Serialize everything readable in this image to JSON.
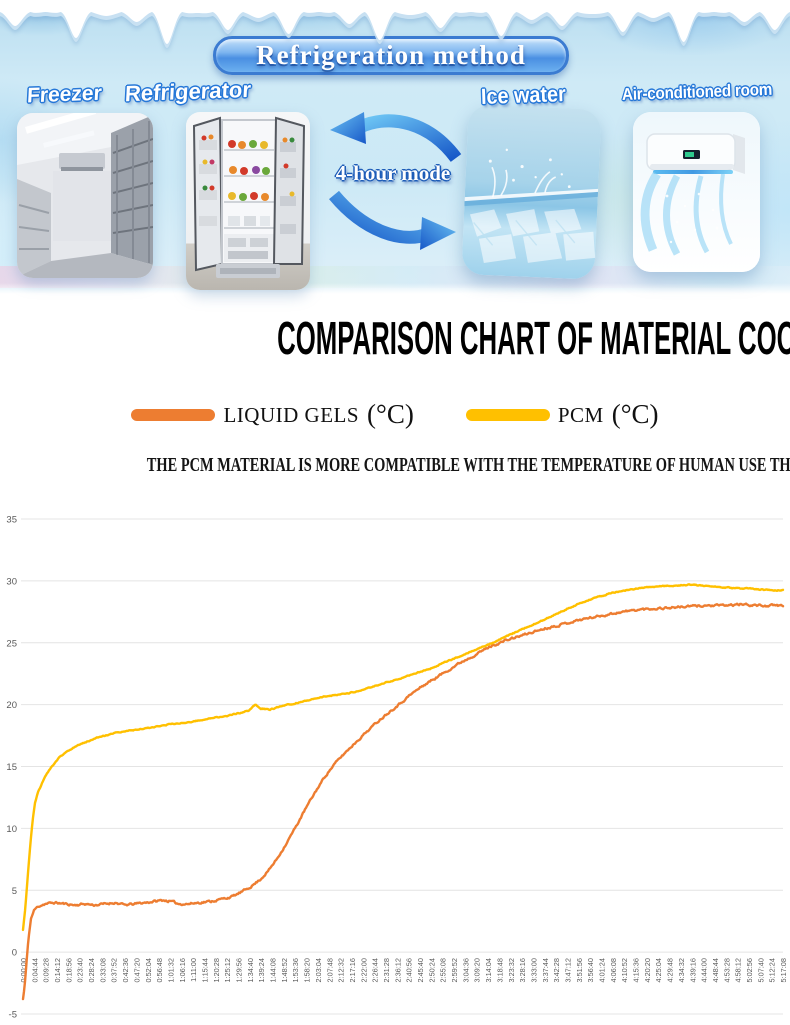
{
  "banner": {
    "title": "Refrigeration method",
    "caption": "4-hour mode",
    "items": [
      {
        "label": "Freezer"
      },
      {
        "label": "Refrigerator"
      },
      {
        "label": "Ice water"
      },
      {
        "label": "Air-conditioned room"
      }
    ]
  },
  "heading": {
    "title": "COMPARISON CHART OF MATERIAL COOLING EFFECTS"
  },
  "legend": [
    {
      "label": "LIQUID GELS",
      "unit": "(°C)",
      "color": "#ED7D31"
    },
    {
      "label": "PCM",
      "unit": "(°C)",
      "color": "#FFC000"
    }
  ],
  "subtitle": {
    "text": "THE PCM MATERIAL IS MORE COMPATIBLE WITH THE TEMPERATURE  OF HUMAN USE THAN LIQUID GEL"
  },
  "chart_data": {
    "type": "line",
    "title": "",
    "xlabel": "",
    "ylabel": "",
    "ylim": [
      -5,
      35
    ],
    "yticks": [
      35,
      30,
      25,
      20,
      15,
      10,
      5,
      0,
      -5
    ],
    "grid": "horizontal-only",
    "legend_position": "above-chart",
    "grid_color": "#e4e4e4",
    "tick_color": "#595959",
    "x_total_seconds": 19028,
    "x_tick_interval_seconds": 284,
    "x_tick_labels": [
      "0:00:00",
      "0:04:44",
      "0:09:28",
      "0:14:12",
      "0:18:56",
      "0:23:40",
      "0:28:24",
      "0:33:08",
      "0:37:52",
      "0:42:36",
      "0:47:20",
      "0:52:04",
      "0:56:48",
      "1:01:32",
      "1:06:16",
      "1:11:00",
      "1:15:44",
      "1:20:28",
      "1:25:12",
      "1:29:56",
      "1:34:40",
      "1:39:24",
      "1:44:08",
      "1:48:52",
      "1:53:36",
      "1:58:20",
      "2:03:04",
      "2:07:48",
      "2:12:32",
      "2:17:16",
      "2:22:00",
      "2:26:44",
      "2:31:28",
      "2:36:12",
      "2:40:56",
      "2:45:40",
      "2:50:24",
      "2:55:08",
      "2:59:52",
      "3:04:36",
      "3:09:20",
      "3:14:04",
      "3:18:48",
      "3:23:32",
      "3:28:16",
      "3:33:00",
      "3:37:44",
      "3:42:28",
      "3:47:12",
      "3:51:56",
      "3:56:40",
      "4:01:24",
      "4:06:08",
      "4:10:52",
      "4:15:36",
      "4:20:20",
      "4:25:04",
      "4:29:48",
      "4:34:32",
      "4:39:16",
      "4:44:00",
      "4:48:44",
      "4:53:28",
      "4:58:12",
      "5:02:56",
      "5:07:40",
      "5:12:24",
      "5:17:08"
    ],
    "series": [
      {
        "name": "LIQUID GELS (°C)",
        "color": "#ED7D31",
        "noise": 0.16,
        "points": [
          [
            0,
            -3.8
          ],
          [
            40,
            -2.8
          ],
          [
            90,
            -0.8
          ],
          [
            140,
            1.2
          ],
          [
            200,
            2.7
          ],
          [
            280,
            3.4
          ],
          [
            380,
            3.7
          ],
          [
            550,
            3.9
          ],
          [
            800,
            4.0
          ],
          [
            1050,
            3.9
          ],
          [
            1300,
            3.8
          ],
          [
            1550,
            3.9
          ],
          [
            1800,
            3.8
          ],
          [
            2050,
            3.9
          ],
          [
            2300,
            4.0
          ],
          [
            2550,
            3.8
          ],
          [
            2800,
            3.9
          ],
          [
            3050,
            4.0
          ],
          [
            3300,
            4.1
          ],
          [
            3500,
            4.2
          ],
          [
            3700,
            4.1
          ],
          [
            3900,
            3.9
          ],
          [
            4150,
            3.9
          ],
          [
            4400,
            4.0
          ],
          [
            4700,
            4.1
          ],
          [
            5000,
            4.3
          ],
          [
            5250,
            4.5
          ],
          [
            5500,
            4.9
          ],
          [
            5750,
            5.4
          ],
          [
            5950,
            5.9
          ],
          [
            6150,
            6.6
          ],
          [
            6350,
            7.5
          ],
          [
            6560,
            8.6
          ],
          [
            6810,
            10.0
          ],
          [
            7060,
            11.5
          ],
          [
            7310,
            12.9
          ],
          [
            7560,
            14.2
          ],
          [
            7800,
            15.2
          ],
          [
            8060,
            16.1
          ],
          [
            8310,
            16.9
          ],
          [
            8600,
            17.8
          ],
          [
            8900,
            18.7
          ],
          [
            9200,
            19.5
          ],
          [
            9440,
            20.1
          ],
          [
            9700,
            20.8
          ],
          [
            10000,
            21.5
          ],
          [
            10300,
            22.1
          ],
          [
            10600,
            22.7
          ],
          [
            10950,
            23.4
          ],
          [
            11300,
            24.0
          ],
          [
            11700,
            24.7
          ],
          [
            12100,
            25.2
          ],
          [
            12500,
            25.6
          ],
          [
            13000,
            26.1
          ],
          [
            13500,
            26.5
          ],
          [
            14000,
            26.9
          ],
          [
            14500,
            27.2
          ],
          [
            15000,
            27.5
          ],
          [
            15500,
            27.7
          ],
          [
            16000,
            27.8
          ],
          [
            16500,
            27.9
          ],
          [
            17000,
            28.0
          ],
          [
            17500,
            28.0
          ],
          [
            18000,
            28.1
          ],
          [
            18500,
            28.0
          ],
          [
            19028,
            28.0
          ]
        ]
      },
      {
        "name": "PCM (°C)",
        "color": "#FFC000",
        "noise": 0.08,
        "points": [
          [
            0,
            1.8
          ],
          [
            60,
            3.6
          ],
          [
            120,
            6.2
          ],
          [
            180,
            8.6
          ],
          [
            240,
            10.6
          ],
          [
            300,
            12.0
          ],
          [
            360,
            12.8
          ],
          [
            430,
            13.3
          ],
          [
            550,
            14.2
          ],
          [
            700,
            14.9
          ],
          [
            900,
            15.7
          ],
          [
            1100,
            16.2
          ],
          [
            1300,
            16.6
          ],
          [
            1600,
            17.0
          ],
          [
            1930,
            17.4
          ],
          [
            2300,
            17.7
          ],
          [
            2680,
            17.9
          ],
          [
            3100,
            18.1
          ],
          [
            3680,
            18.4
          ],
          [
            4200,
            18.6
          ],
          [
            4700,
            18.9
          ],
          [
            5100,
            19.1
          ],
          [
            5400,
            19.3
          ],
          [
            5650,
            19.5
          ],
          [
            5820,
            20.0
          ],
          [
            5960,
            19.7
          ],
          [
            6180,
            19.6
          ],
          [
            6500,
            19.9
          ],
          [
            6930,
            20.2
          ],
          [
            7300,
            20.5
          ],
          [
            7690,
            20.7
          ],
          [
            8100,
            20.9
          ],
          [
            8440,
            21.1
          ],
          [
            8800,
            21.5
          ],
          [
            9100,
            21.8
          ],
          [
            9440,
            22.1
          ],
          [
            9800,
            22.5
          ],
          [
            10190,
            22.9
          ],
          [
            10550,
            23.4
          ],
          [
            10940,
            23.9
          ],
          [
            11300,
            24.4
          ],
          [
            11690,
            24.9
          ],
          [
            12100,
            25.5
          ],
          [
            12440,
            26.0
          ],
          [
            12800,
            26.5
          ],
          [
            13200,
            27.1
          ],
          [
            13600,
            27.7
          ],
          [
            13950,
            28.2
          ],
          [
            14300,
            28.6
          ],
          [
            14700,
            29.0
          ],
          [
            15200,
            29.3
          ],
          [
            15700,
            29.5
          ],
          [
            16200,
            29.6
          ],
          [
            16700,
            29.7
          ],
          [
            17100,
            29.6
          ],
          [
            17450,
            29.5
          ],
          [
            17800,
            29.4
          ],
          [
            18130,
            29.4
          ],
          [
            18500,
            29.3
          ],
          [
            18830,
            29.2
          ],
          [
            19028,
            29.3
          ]
        ]
      }
    ]
  }
}
